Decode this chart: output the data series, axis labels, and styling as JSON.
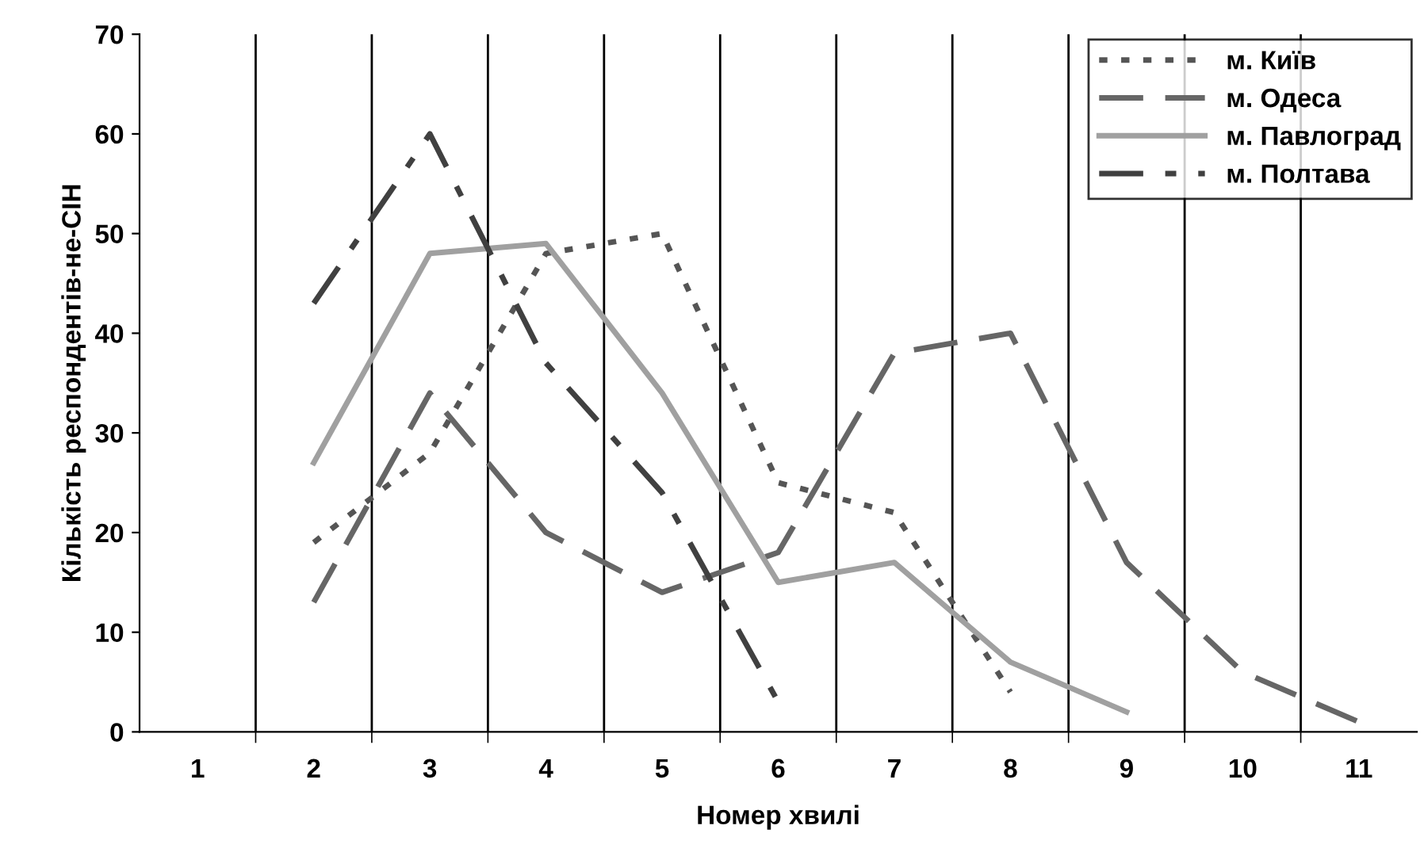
{
  "chart_data": {
    "type": "line",
    "xlabel": "Номер хвилі",
    "ylabel": "Кількість респондентів-не-СІН",
    "categories": [
      "1",
      "2",
      "3",
      "4",
      "5",
      "6",
      "7",
      "8",
      "9",
      "10",
      "11"
    ],
    "series": [
      {
        "name": "м. Київ",
        "color": "#555555",
        "line_style": "dotted",
        "values": [
          null,
          19,
          28,
          48,
          50,
          25,
          22,
          4,
          null,
          null,
          null
        ]
      },
      {
        "name": "м. Одеса",
        "color": "#666666",
        "line_style": "dashed",
        "values": [
          null,
          13,
          34,
          20,
          14,
          18,
          38,
          40,
          17,
          6,
          1
        ]
      },
      {
        "name": "м. Павлоград",
        "color": "#a0a0a0",
        "line_style": "solid",
        "values": [
          null,
          27,
          48,
          49,
          34,
          15,
          17,
          7,
          2,
          null,
          null
        ]
      },
      {
        "name": "м. Полтава",
        "color": "#404040",
        "line_style": "dashdot",
        "values": [
          null,
          43,
          60,
          37,
          24,
          3,
          null,
          null,
          null,
          null,
          null
        ]
      }
    ],
    "ylim": [
      0,
      70
    ],
    "yticks": [
      0,
      10,
      20,
      30,
      40,
      50,
      60,
      70
    ],
    "grid": "x",
    "legend": "top right",
    "marker": "none"
  }
}
